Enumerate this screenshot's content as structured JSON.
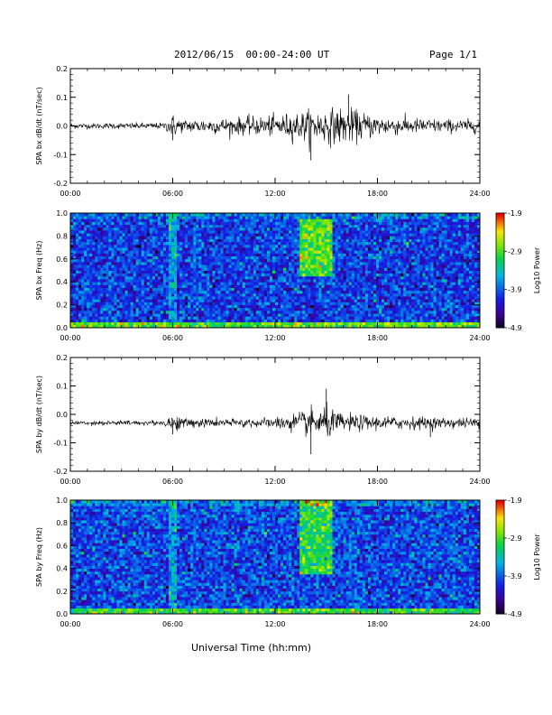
{
  "header": {
    "title": "2012/06/15  00:00-24:00 UT",
    "page": "Page 1/1"
  },
  "x_axis_title": "Universal Time (hh:mm)",
  "chart_data": [
    {
      "id": "bx-dbdt",
      "type": "line",
      "ylabel": "SPA bx dB/dt (nT/sec)",
      "xlim": [
        0,
        24
      ],
      "ylim": [
        -0.2,
        0.2
      ],
      "x_tick_labels": [
        "00:00",
        "06:00",
        "12:00",
        "18:00",
        "24:00"
      ],
      "y_ticks": [
        -0.2,
        -0.1,
        0.0,
        0.1,
        0.2
      ],
      "y_tick_labels": [
        "-0.2",
        "-0.1",
        "0.0",
        "0.1",
        "0.2"
      ],
      "baseline": 0.0,
      "envelope": {
        "hours": [
          0,
          5.5,
          6,
          6.5,
          9,
          12,
          14,
          16,
          18,
          20,
          22,
          24
        ],
        "amplitude": [
          0.01,
          0.012,
          0.045,
          0.025,
          0.03,
          0.04,
          0.06,
          0.07,
          0.04,
          0.03,
          0.025,
          0.025
        ]
      },
      "peaks": [
        {
          "hour": 6.0,
          "value": -0.05
        },
        {
          "hour": 14.1,
          "value": -0.12
        },
        {
          "hour": 16.3,
          "value": 0.11
        }
      ]
    },
    {
      "id": "bx-freq",
      "type": "heatmap",
      "ylabel": "SPA bx Freq (Hz)",
      "colorbar_label": "Log10 Power",
      "xlim": [
        0,
        24
      ],
      "ylim": [
        0,
        1.0
      ],
      "x_tick_labels": [
        "00:00",
        "06:00",
        "12:00",
        "18:00",
        "24:00"
      ],
      "y_ticks": [
        0.0,
        0.2,
        0.4,
        0.6,
        0.8,
        1.0
      ],
      "y_tick_labels": [
        "0.0",
        "0.2",
        "0.4",
        "0.6",
        "0.8",
        "1.0"
      ],
      "power_range": [
        -4.9,
        -1.9
      ],
      "colorbar_tick_labels": [
        "-1.9",
        "-2.9",
        "-3.9",
        "-4.9"
      ],
      "background_power": -4.05,
      "features": [
        {
          "hours": [
            5.8,
            6.3
          ],
          "freq": [
            0.0,
            1.0
          ],
          "power": -3.6
        },
        {
          "hours": [
            13.5,
            15.3
          ],
          "freq": [
            0.45,
            0.95
          ],
          "power": -2.9
        },
        {
          "hours": [
            0,
            24
          ],
          "freq": [
            0.0,
            0.04
          ],
          "power": -2.8
        }
      ]
    },
    {
      "id": "by-dbdt",
      "type": "line",
      "ylabel": "SPA by dB/dt (nT/sec)",
      "xlim": [
        0,
        24
      ],
      "ylim": [
        -0.2,
        0.2
      ],
      "x_tick_labels": [
        "00:00",
        "06:00",
        "12:00",
        "18:00",
        "24:00"
      ],
      "y_ticks": [
        -0.2,
        -0.1,
        0.0,
        0.1,
        0.2
      ],
      "y_tick_labels": [
        "-0.2",
        "-0.1",
        "0.0",
        "0.1",
        "0.2"
      ],
      "baseline": -0.03,
      "envelope": {
        "hours": [
          0,
          5.5,
          6,
          6.5,
          9,
          12,
          14,
          15,
          16,
          18,
          20,
          22,
          24
        ],
        "amplitude": [
          0.008,
          0.01,
          0.04,
          0.02,
          0.015,
          0.02,
          0.05,
          0.06,
          0.035,
          0.025,
          0.025,
          0.02,
          0.02
        ]
      },
      "peaks": [
        {
          "hour": 6.0,
          "value": -0.07
        },
        {
          "hour": 14.1,
          "value": -0.14
        },
        {
          "hour": 15.0,
          "value": 0.09
        },
        {
          "hour": 21.1,
          "value": -0.08
        }
      ]
    },
    {
      "id": "by-freq",
      "type": "heatmap",
      "ylabel": "SPA by Freq (Hz)",
      "colorbar_label": "Log10 Power",
      "xlim": [
        0,
        24
      ],
      "ylim": [
        0,
        1.0
      ],
      "x_tick_labels": [
        "00:00",
        "06:00",
        "12:00",
        "18:00",
        "24:00"
      ],
      "y_ticks": [
        0.0,
        0.2,
        0.4,
        0.6,
        0.8,
        1.0
      ],
      "y_tick_labels": [
        "0.0",
        "0.2",
        "0.4",
        "0.6",
        "0.8",
        "1.0"
      ],
      "power_range": [
        -4.9,
        -1.9
      ],
      "colorbar_tick_labels": [
        "-1.9",
        "-2.9",
        "-3.9",
        "-4.9"
      ],
      "background_power": -4.0,
      "features": [
        {
          "hours": [
            5.8,
            6.3
          ],
          "freq": [
            0.0,
            1.0
          ],
          "power": -3.6
        },
        {
          "hours": [
            13.5,
            15.3
          ],
          "freq": [
            0.35,
            1.0
          ],
          "power": -3.0
        },
        {
          "hours": [
            0,
            24
          ],
          "freq": [
            0.0,
            0.06
          ],
          "power": -3.0
        }
      ]
    }
  ]
}
